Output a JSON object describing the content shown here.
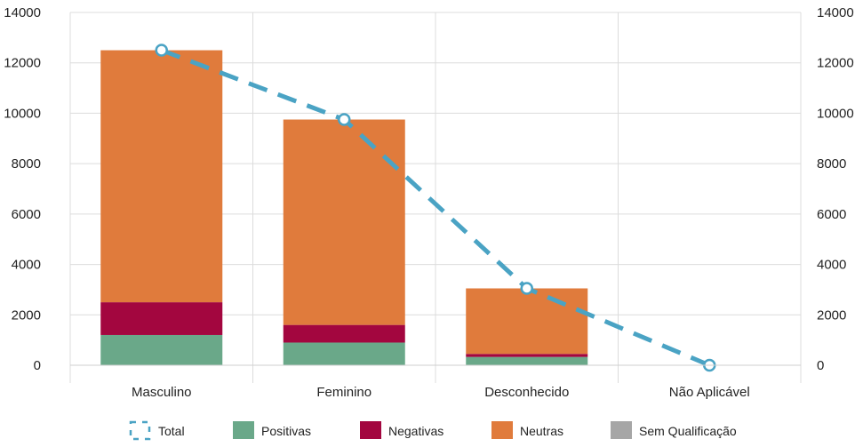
{
  "chart_data": {
    "type": "bar",
    "stacked": true,
    "categories": [
      "Masculino",
      "Feminino",
      "Desconhecido",
      "Não Aplicável"
    ],
    "series": [
      {
        "name": "Positivas",
        "color": "#6aa889",
        "values": [
          1200,
          900,
          330,
          0
        ]
      },
      {
        "name": "Negativas",
        "color": "#a3063f",
        "values": [
          1300,
          700,
          120,
          0
        ]
      },
      {
        "name": "Neutras",
        "color": "#e07b3c",
        "values": [
          10000,
          8150,
          2600,
          0
        ]
      },
      {
        "name": "Sem Qualificação",
        "color": "#a6a6a6",
        "values": [
          0,
          0,
          0,
          0
        ]
      }
    ],
    "line_series": {
      "name": "Total",
      "color": "#4aa3c4",
      "style": "dashed",
      "values": [
        12500,
        9750,
        3050,
        0
      ]
    },
    "ylim": [
      0,
      14000
    ],
    "yticks": [
      0,
      2000,
      4000,
      6000,
      8000,
      10000,
      12000,
      14000
    ],
    "secondary_ylim": [
      0,
      14000
    ],
    "grid": true,
    "legend_position": "bottom",
    "legend": [
      "Total",
      "Positivas",
      "Negativas",
      "Neutras",
      "Sem Qualificação"
    ]
  }
}
